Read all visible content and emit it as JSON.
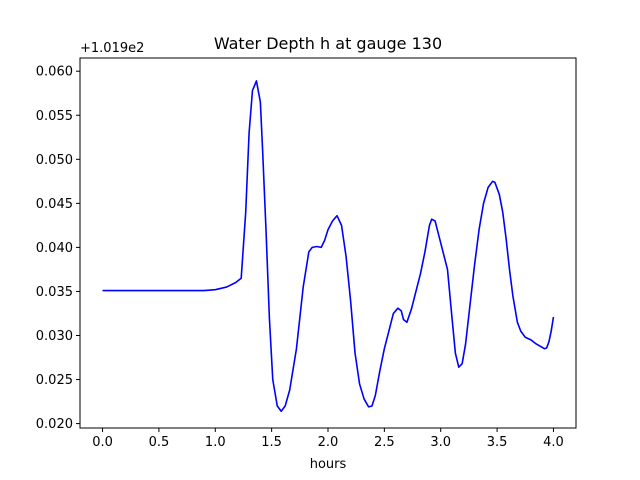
{
  "chart_data": {
    "type": "line",
    "title": "Water Depth h at gauge 130",
    "xlabel": "hours",
    "ylabel": "",
    "y_offset_text": "+1.019e2",
    "y_offset_value": 101.9,
    "xlim": [
      -0.2,
      4.2
    ],
    "ylim": [
      0.0195,
      0.0615
    ],
    "grid": false,
    "legend": "none",
    "x_ticks": [
      0.0,
      0.5,
      1.0,
      1.5,
      2.0,
      2.5,
      3.0,
      3.5,
      4.0
    ],
    "x_tick_labels": [
      "0.0",
      "0.5",
      "1.0",
      "1.5",
      "2.0",
      "2.5",
      "3.0",
      "3.5",
      "4.0"
    ],
    "y_ticks": [
      0.02,
      0.025,
      0.03,
      0.035,
      0.04,
      0.045,
      0.05,
      0.055,
      0.06
    ],
    "y_tick_labels": [
      "0.020",
      "0.025",
      "0.030",
      "0.035",
      "0.040",
      "0.045",
      "0.050",
      "0.055",
      "0.060"
    ],
    "series": [
      {
        "color": "#0000ff",
        "x": [
          0.0,
          0.3,
          0.6,
          0.9,
          1.0,
          1.1,
          1.18,
          1.23,
          1.27,
          1.3,
          1.33,
          1.365,
          1.4,
          1.42,
          1.45,
          1.48,
          1.51,
          1.55,
          1.585,
          1.62,
          1.66,
          1.72,
          1.78,
          1.83,
          1.86,
          1.9,
          1.94,
          1.97,
          2.0,
          2.04,
          2.08,
          2.12,
          2.16,
          2.2,
          2.24,
          2.28,
          2.32,
          2.36,
          2.39,
          2.42,
          2.46,
          2.5,
          2.54,
          2.58,
          2.62,
          2.65,
          2.67,
          2.7,
          2.74,
          2.78,
          2.82,
          2.86,
          2.9,
          2.92,
          2.95,
          2.98,
          3.02,
          3.06,
          3.1,
          3.13,
          3.16,
          3.19,
          3.22,
          3.26,
          3.3,
          3.34,
          3.38,
          3.42,
          3.46,
          3.48,
          3.52,
          3.55,
          3.58,
          3.61,
          3.64,
          3.68,
          3.71,
          3.75,
          3.8,
          3.84,
          3.88,
          3.92,
          3.94,
          3.96,
          3.98,
          4.0
        ],
        "y": [
          0.0351,
          0.0351,
          0.0351,
          0.0351,
          0.0352,
          0.0355,
          0.036,
          0.0365,
          0.044,
          0.053,
          0.0578,
          0.0589,
          0.0565,
          0.051,
          0.042,
          0.032,
          0.025,
          0.022,
          0.0214,
          0.022,
          0.0238,
          0.0285,
          0.0355,
          0.0395,
          0.04,
          0.0401,
          0.04,
          0.0408,
          0.042,
          0.043,
          0.0436,
          0.0425,
          0.039,
          0.034,
          0.028,
          0.0245,
          0.0228,
          0.0219,
          0.022,
          0.0232,
          0.026,
          0.0285,
          0.0305,
          0.0325,
          0.0331,
          0.0328,
          0.0318,
          0.0315,
          0.033,
          0.035,
          0.037,
          0.0395,
          0.0425,
          0.0432,
          0.043,
          0.0415,
          0.0395,
          0.0375,
          0.032,
          0.028,
          0.0264,
          0.0268,
          0.029,
          0.0335,
          0.038,
          0.042,
          0.045,
          0.0468,
          0.0475,
          0.0474,
          0.046,
          0.044,
          0.041,
          0.0375,
          0.0345,
          0.0315,
          0.0305,
          0.0298,
          0.0295,
          0.0291,
          0.0288,
          0.0285,
          0.0286,
          0.0293,
          0.0305,
          0.0321
        ]
      }
    ]
  }
}
